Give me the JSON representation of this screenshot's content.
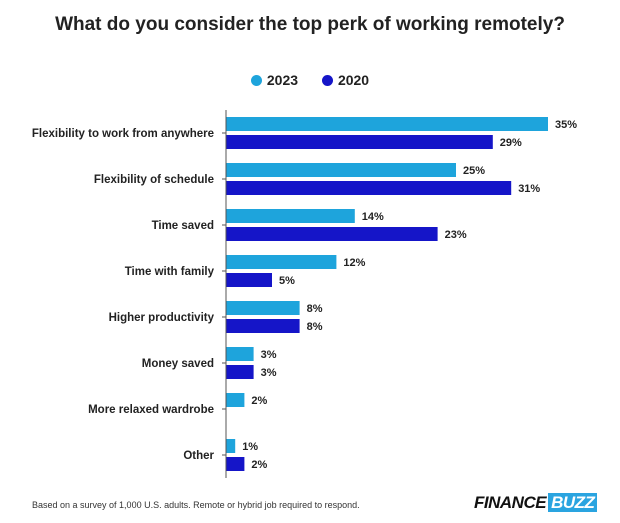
{
  "chart_data": {
    "type": "bar",
    "orientation": "horizontal",
    "title": "What do you consider the top perk of working remotely?",
    "categories": [
      "Flexibility to work from anywhere",
      "Flexibility of schedule",
      "Time saved",
      "Time with family",
      "Higher productivity",
      "Money saved",
      "More relaxed wardrobe",
      "Other"
    ],
    "series": [
      {
        "name": "2023",
        "color": "#1ea4dc",
        "values": [
          35,
          25,
          14,
          12,
          8,
          3,
          2,
          1
        ]
      },
      {
        "name": "2020",
        "color": "#1515c8",
        "values": [
          29,
          31,
          23,
          5,
          8,
          3,
          null,
          2
        ]
      }
    ],
    "value_suffix": "%",
    "xlim": [
      0,
      35
    ],
    "legend_position": "top-center",
    "grid": false
  },
  "footnote": "Based on a survey of 1,000 U.S. adults. Remote or hybrid job required to respond.",
  "logo": {
    "part1": "FINANCE",
    "part2": "BUZZ"
  }
}
